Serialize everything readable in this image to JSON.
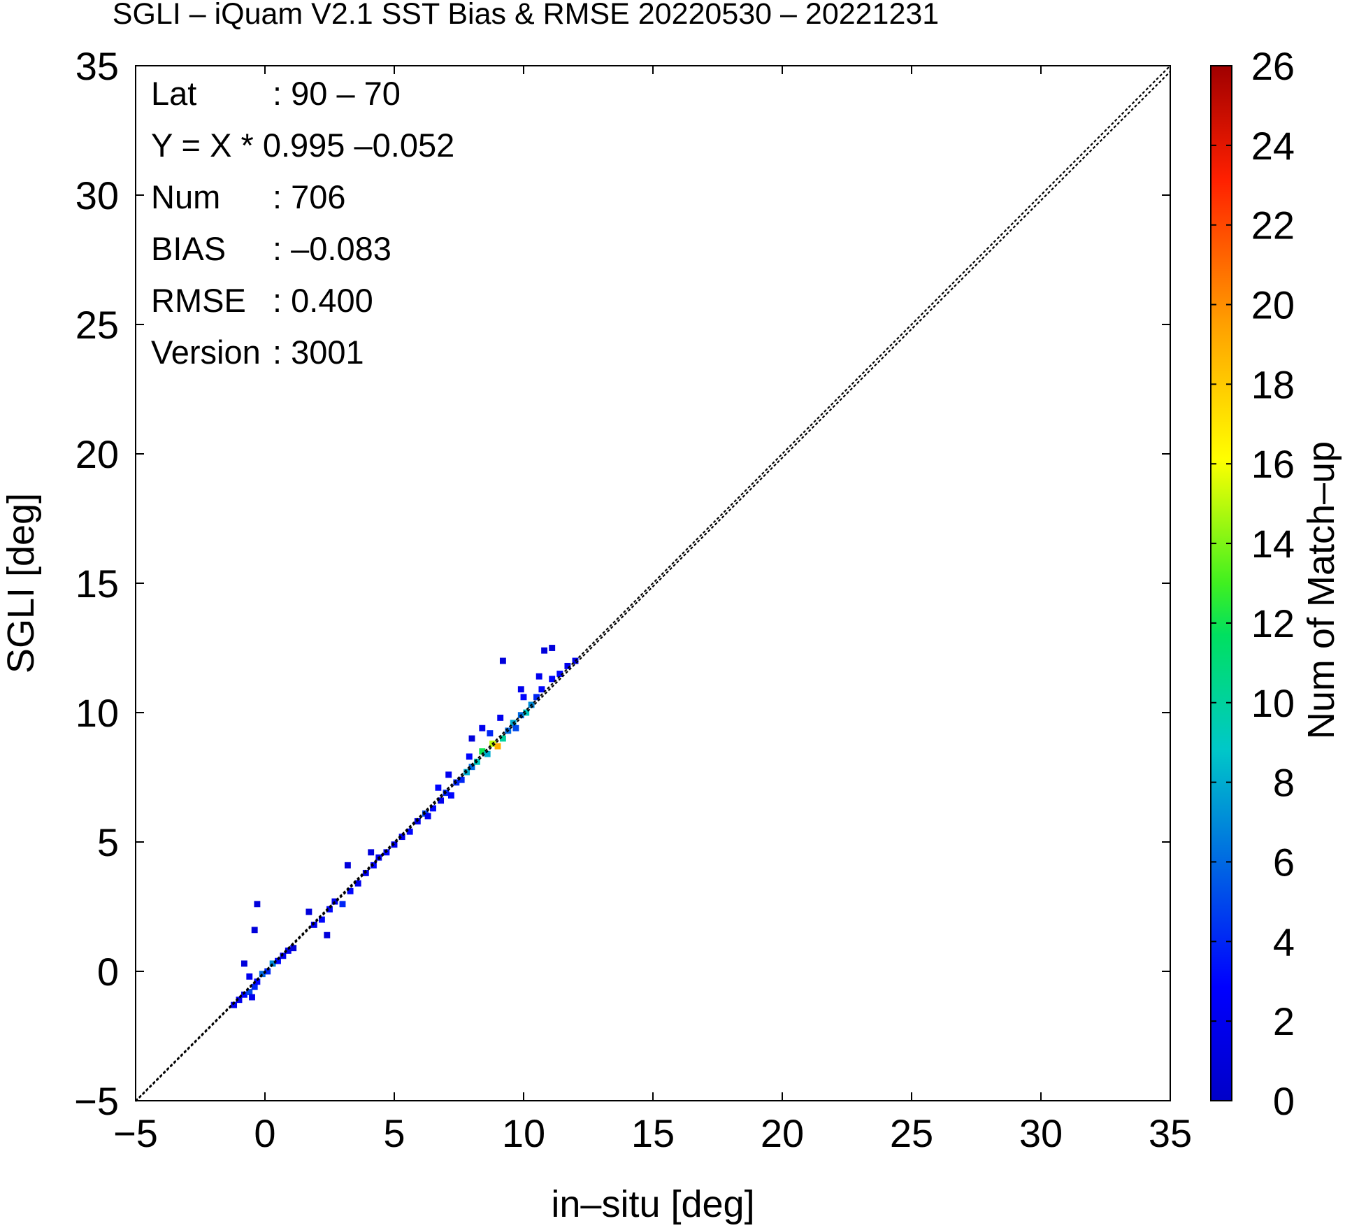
{
  "chart_data": {
    "type": "heatmap",
    "title": "SGLI – iQuam V2.1 SST Bias & RMSE 20220530 – 20221231",
    "xlabel": "in–situ [deg]",
    "ylabel": "SGLI [deg]",
    "xlim": [
      -5,
      35
    ],
    "ylim": [
      -5,
      35
    ],
    "x_ticks": [
      "−5",
      "0",
      "5",
      "10",
      "15",
      "20",
      "25",
      "30",
      "35"
    ],
    "y_ticks": [
      "−5",
      "0",
      "5",
      "10",
      "15",
      "20",
      "25",
      "30",
      "35"
    ],
    "colorbar": {
      "label": "Num of Match–up",
      "range": [
        0,
        26
      ],
      "ticks": [
        "0",
        "2",
        "4",
        "6",
        "8",
        "10",
        "12",
        "14",
        "16",
        "18",
        "20",
        "22",
        "24",
        "26"
      ]
    },
    "reference_line": "y = x (1:1)",
    "stats": [
      {
        "key": "Lat",
        "value": ": 90 – 70"
      },
      {
        "key": "Y = X * 0.995 –0.052",
        "value": ""
      },
      {
        "key": "Num",
        "value": ": 706"
      },
      {
        "key": "BIAS",
        "value": ": –0.083"
      },
      {
        "key": "RMSE",
        "value": ": 0.400"
      },
      {
        "key": "Version",
        "value": ": 3001"
      }
    ],
    "bins": [
      {
        "x": -1.2,
        "y": -1.3,
        "count": 2
      },
      {
        "x": -1.0,
        "y": -1.1,
        "count": 2
      },
      {
        "x": -0.8,
        "y": -0.9,
        "count": 3
      },
      {
        "x": -0.6,
        "y": -0.8,
        "count": 5
      },
      {
        "x": -0.5,
        "y": -1.0,
        "count": 2
      },
      {
        "x": -0.4,
        "y": -0.6,
        "count": 4
      },
      {
        "x": -0.3,
        "y": -0.4,
        "count": 3
      },
      {
        "x": -0.6,
        "y": -0.2,
        "count": 2
      },
      {
        "x": -0.8,
        "y": 0.3,
        "count": 1
      },
      {
        "x": -0.4,
        "y": 1.6,
        "count": 1
      },
      {
        "x": -0.3,
        "y": 2.6,
        "count": 1
      },
      {
        "x": -0.1,
        "y": -0.1,
        "count": 6
      },
      {
        "x": 0.1,
        "y": 0.0,
        "count": 4
      },
      {
        "x": 0.3,
        "y": 0.3,
        "count": 7
      },
      {
        "x": 0.5,
        "y": 0.4,
        "count": 3
      },
      {
        "x": 0.7,
        "y": 0.6,
        "count": 2
      },
      {
        "x": 0.9,
        "y": 0.8,
        "count": 2
      },
      {
        "x": 1.1,
        "y": 0.9,
        "count": 1
      },
      {
        "x": 1.7,
        "y": 2.3,
        "count": 1
      },
      {
        "x": 1.9,
        "y": 1.8,
        "count": 2
      },
      {
        "x": 2.2,
        "y": 2.0,
        "count": 3
      },
      {
        "x": 2.5,
        "y": 2.4,
        "count": 3
      },
      {
        "x": 2.7,
        "y": 2.7,
        "count": 2
      },
      {
        "x": 3.0,
        "y": 2.6,
        "count": 4
      },
      {
        "x": 2.4,
        "y": 1.4,
        "count": 1
      },
      {
        "x": 3.3,
        "y": 3.1,
        "count": 3
      },
      {
        "x": 3.6,
        "y": 3.4,
        "count": 2
      },
      {
        "x": 3.9,
        "y": 3.8,
        "count": 2
      },
      {
        "x": 4.2,
        "y": 4.1,
        "count": 3
      },
      {
        "x": 4.4,
        "y": 4.4,
        "count": 2
      },
      {
        "x": 4.1,
        "y": 4.6,
        "count": 1
      },
      {
        "x": 3.2,
        "y": 4.1,
        "count": 1
      },
      {
        "x": 4.7,
        "y": 4.6,
        "count": 3
      },
      {
        "x": 5.0,
        "y": 4.9,
        "count": 2
      },
      {
        "x": 5.3,
        "y": 5.2,
        "count": 2
      },
      {
        "x": 5.6,
        "y": 5.4,
        "count": 3
      },
      {
        "x": 5.9,
        "y": 5.8,
        "count": 2
      },
      {
        "x": 6.2,
        "y": 6.1,
        "count": 5
      },
      {
        "x": 6.5,
        "y": 6.3,
        "count": 3
      },
      {
        "x": 6.8,
        "y": 6.6,
        "count": 2
      },
      {
        "x": 6.7,
        "y": 7.1,
        "count": 3
      },
      {
        "x": 7.0,
        "y": 6.9,
        "count": 4
      },
      {
        "x": 7.2,
        "y": 6.8,
        "count": 3
      },
      {
        "x": 7.4,
        "y": 7.3,
        "count": 4
      },
      {
        "x": 7.6,
        "y": 7.4,
        "count": 4
      },
      {
        "x": 7.1,
        "y": 7.6,
        "count": 2
      },
      {
        "x": 7.8,
        "y": 7.7,
        "count": 8
      },
      {
        "x": 8.0,
        "y": 7.9,
        "count": 6
      },
      {
        "x": 8.2,
        "y": 8.1,
        "count": 9
      },
      {
        "x": 8.4,
        "y": 8.5,
        "count": 12
      },
      {
        "x": 8.6,
        "y": 8.4,
        "count": 8
      },
      {
        "x": 8.8,
        "y": 8.8,
        "count": 15
      },
      {
        "x": 9.0,
        "y": 8.7,
        "count": 19
      },
      {
        "x": 8.7,
        "y": 9.2,
        "count": 4
      },
      {
        "x": 8.4,
        "y": 9.4,
        "count": 2
      },
      {
        "x": 7.9,
        "y": 8.3,
        "count": 3
      },
      {
        "x": 9.2,
        "y": 9.0,
        "count": 10
      },
      {
        "x": 9.4,
        "y": 9.3,
        "count": 6
      },
      {
        "x": 9.6,
        "y": 9.6,
        "count": 8
      },
      {
        "x": 9.7,
        "y": 9.4,
        "count": 5
      },
      {
        "x": 9.1,
        "y": 9.8,
        "count": 2
      },
      {
        "x": 9.9,
        "y": 9.9,
        "count": 6
      },
      {
        "x": 10.1,
        "y": 10.0,
        "count": 9
      },
      {
        "x": 10.3,
        "y": 10.3,
        "count": 7
      },
      {
        "x": 10.0,
        "y": 10.6,
        "count": 3
      },
      {
        "x": 9.9,
        "y": 10.9,
        "count": 2
      },
      {
        "x": 10.5,
        "y": 10.6,
        "count": 4
      },
      {
        "x": 10.7,
        "y": 10.9,
        "count": 3
      },
      {
        "x": 10.6,
        "y": 11.4,
        "count": 2
      },
      {
        "x": 10.8,
        "y": 12.4,
        "count": 1
      },
      {
        "x": 11.1,
        "y": 12.5,
        "count": 1
      },
      {
        "x": 9.2,
        "y": 12.0,
        "count": 1
      },
      {
        "x": 11.1,
        "y": 11.3,
        "count": 3
      },
      {
        "x": 11.4,
        "y": 11.5,
        "count": 3
      },
      {
        "x": 11.7,
        "y": 11.8,
        "count": 2
      },
      {
        "x": 12.0,
        "y": 12.0,
        "count": 2
      },
      {
        "x": 8.0,
        "y": 9.0,
        "count": 1
      },
      {
        "x": 6.3,
        "y": 6.0,
        "count": 2
      }
    ]
  }
}
